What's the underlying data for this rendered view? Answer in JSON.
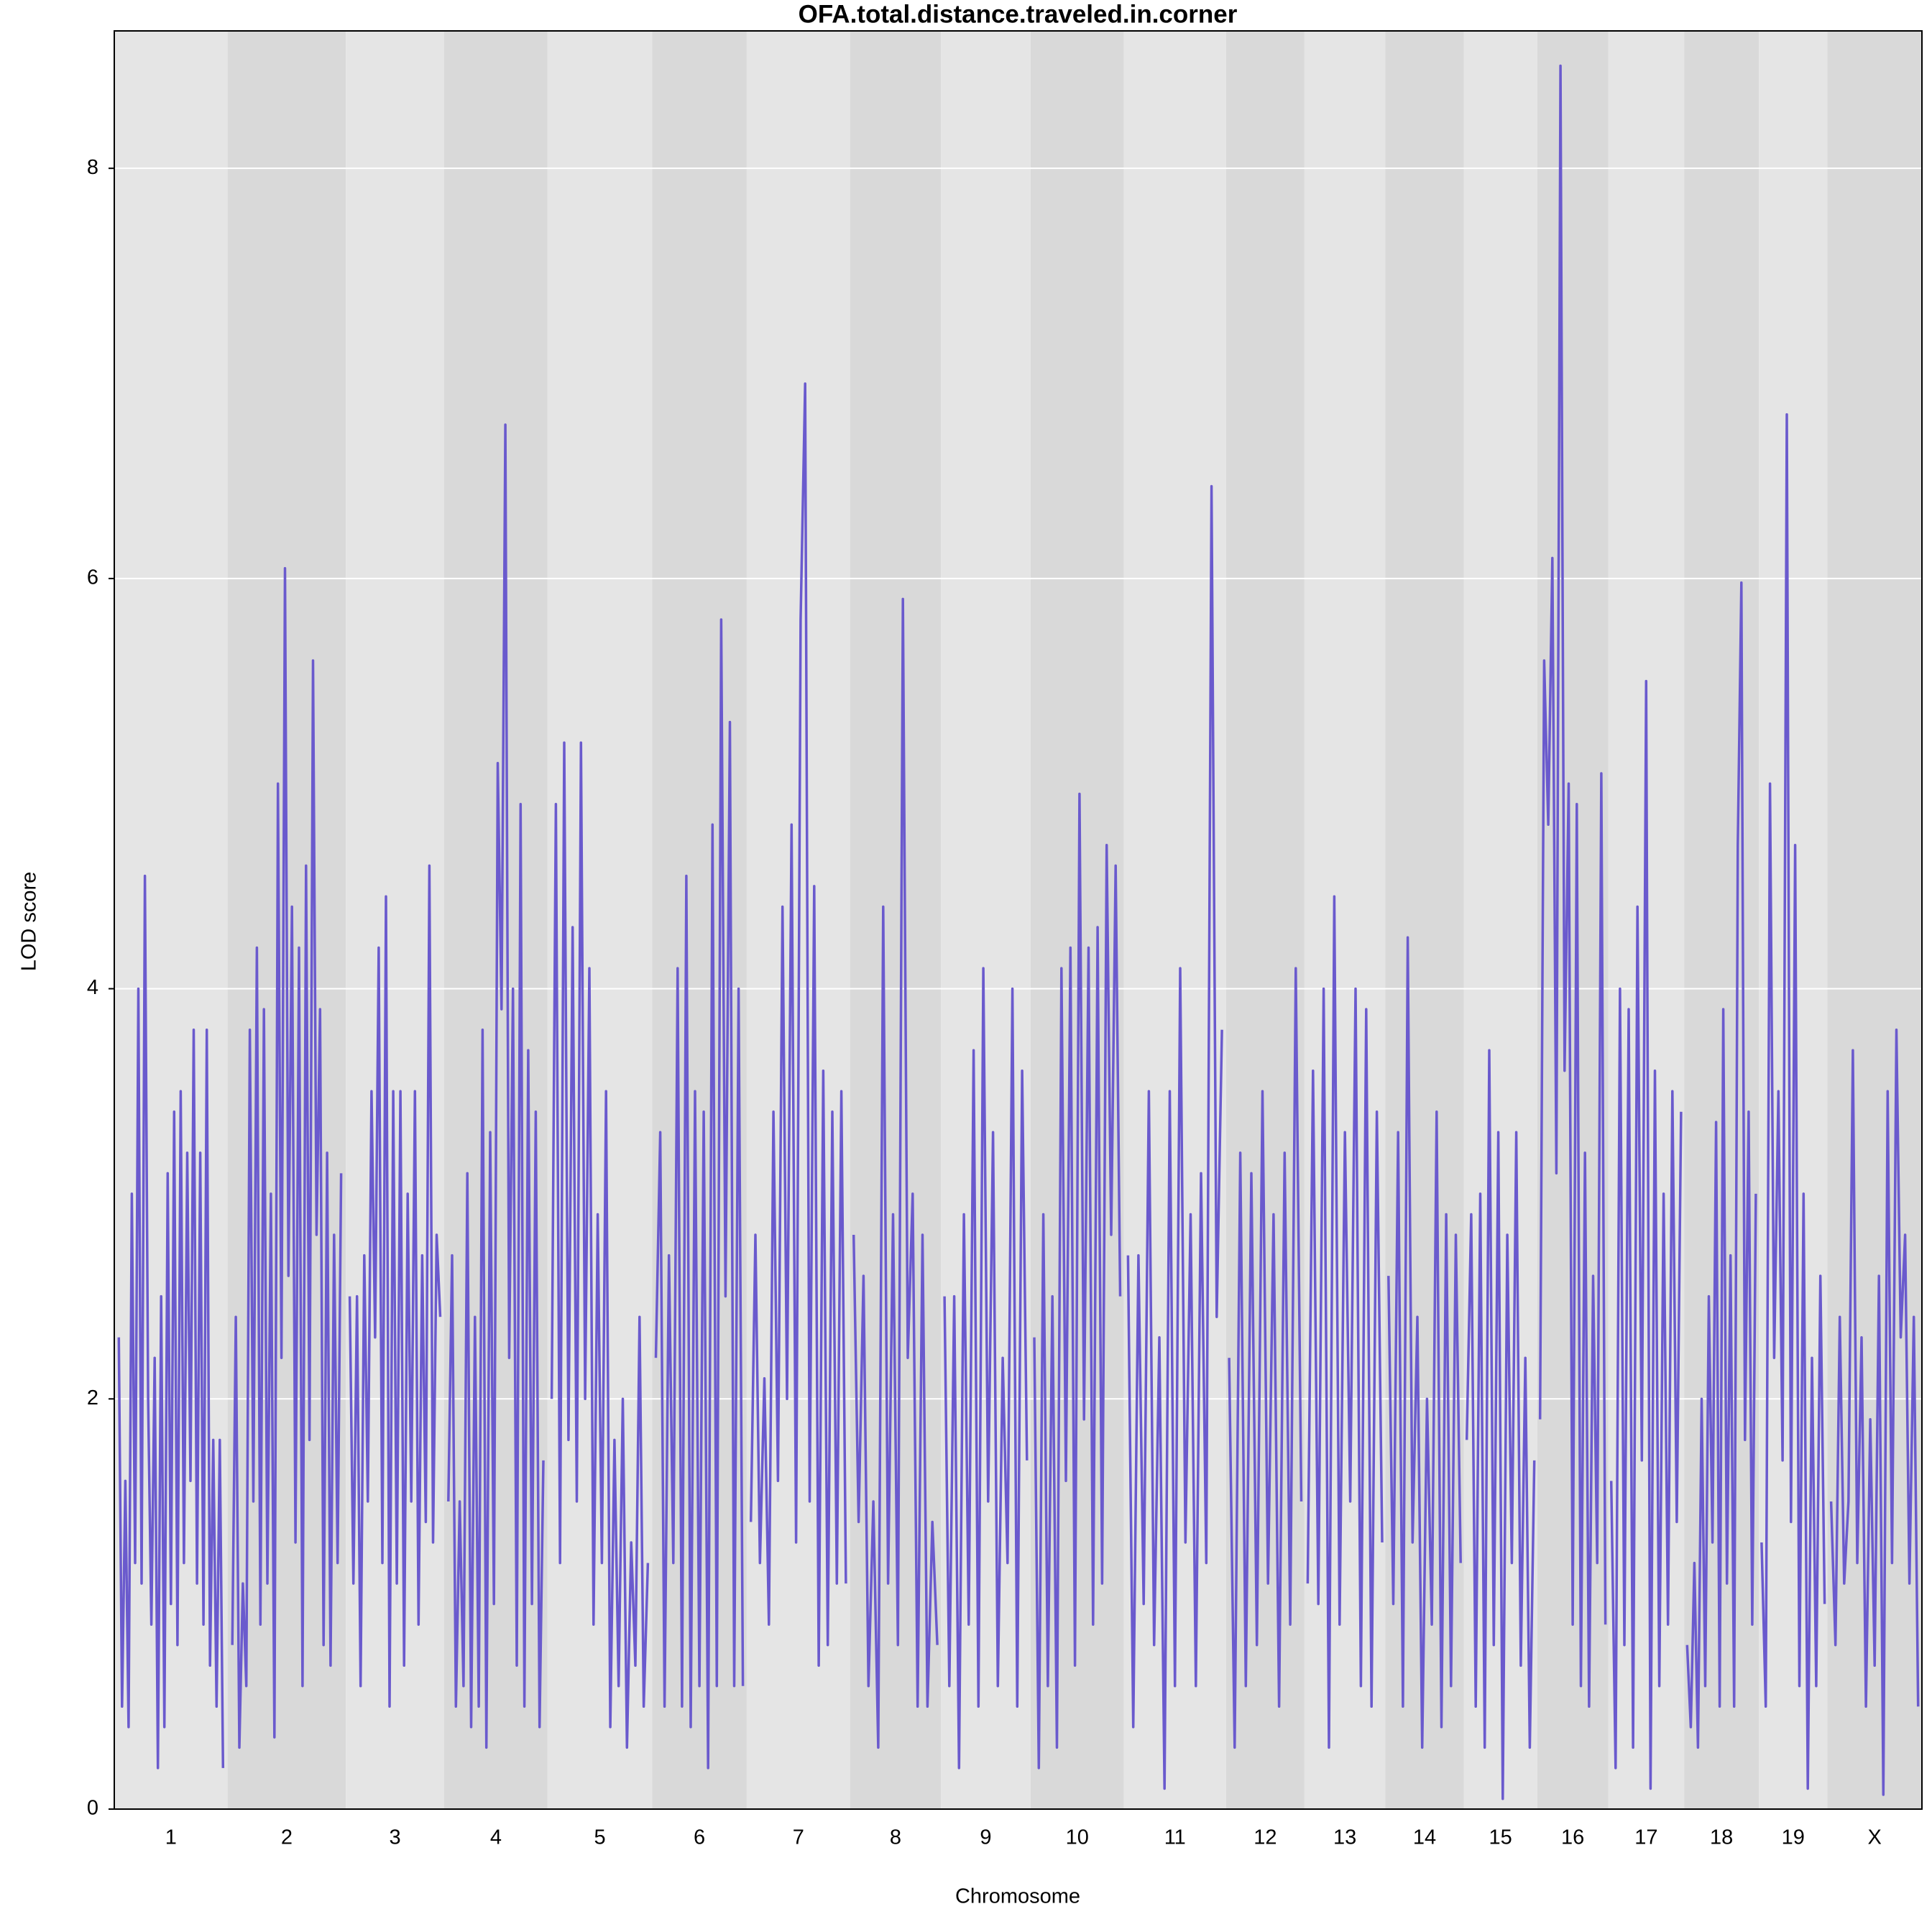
{
  "chart_data": {
    "type": "line",
    "title": "OFA.total.distance.traveled.in.corner",
    "x_label": "Chromosome",
    "y_label": "LOD score",
    "ylim": [
      0,
      8.67
    ],
    "yticks": [
      0,
      2,
      4,
      6,
      8
    ],
    "grid": true,
    "color": "#6a5acd",
    "band_colors": [
      "#e5e5e5",
      "#d9d9d9"
    ],
    "chromosomes": [
      {
        "name": "1",
        "length": 91,
        "values": [
          2.3,
          0.5,
          1.6,
          0.4,
          3.0,
          1.2,
          4.0,
          1.1,
          4.55,
          2.0,
          0.9,
          2.2,
          0.2,
          2.5,
          0.4,
          3.1,
          1.0,
          3.4,
          0.8,
          3.5,
          1.2,
          3.2,
          1.6,
          3.8,
          1.1,
          3.2,
          0.9,
          3.8,
          0.7,
          1.8,
          0.5,
          1.8,
          0.2
        ]
      },
      {
        "name": "2",
        "length": 95,
        "values": [
          0.8,
          2.4,
          0.3,
          1.1,
          0.6,
          3.8,
          1.5,
          4.2,
          0.9,
          3.9,
          1.1,
          3.0,
          0.35,
          5.0,
          2.2,
          6.05,
          2.6,
          4.4,
          1.3,
          4.2,
          0.6,
          4.6,
          1.8,
          5.6,
          2.8,
          3.9,
          0.8,
          3.2,
          0.7,
          2.8,
          1.2,
          3.1
        ]
      },
      {
        "name": "3",
        "length": 79,
        "values": [
          2.5,
          1.1,
          2.5,
          0.6,
          2.7,
          1.5,
          3.5,
          2.3,
          4.2,
          1.2,
          4.45,
          0.5,
          3.5,
          1.1,
          3.5,
          0.7,
          3.0,
          1.5,
          3.5,
          0.9,
          2.7,
          1.4,
          4.6,
          1.3,
          2.8,
          2.4
        ]
      },
      {
        "name": "4",
        "length": 83,
        "values": [
          1.5,
          2.7,
          0.5,
          1.5,
          0.6,
          3.1,
          0.4,
          2.4,
          0.5,
          3.8,
          0.3,
          3.3,
          1.0,
          5.1,
          3.9,
          6.75,
          2.2,
          4.0,
          0.7,
          4.9,
          0.5,
          3.7,
          1.0,
          3.4,
          0.4,
          1.7
        ]
      },
      {
        "name": "5",
        "length": 84,
        "values": [
          2.0,
          4.9,
          1.2,
          5.2,
          1.8,
          4.3,
          1.5,
          5.2,
          2.0,
          4.1,
          0.9,
          2.9,
          1.2,
          3.5,
          0.4,
          1.8,
          0.6,
          2.0,
          0.3,
          1.3,
          0.7,
          2.4,
          0.5,
          1.2
        ]
      },
      {
        "name": "6",
        "length": 76,
        "values": [
          2.2,
          3.3,
          0.5,
          2.7,
          1.2,
          4.1,
          0.5,
          4.55,
          0.4,
          3.5,
          0.6,
          3.4,
          0.2,
          4.8,
          0.6,
          5.8,
          2.5,
          5.3,
          0.6,
          4.0,
          0.6
        ]
      },
      {
        "name": "7",
        "length": 83,
        "values": [
          1.4,
          2.8,
          1.2,
          2.1,
          0.9,
          3.4,
          1.6,
          4.4,
          2.0,
          4.8,
          1.3,
          5.8,
          6.95,
          1.5,
          4.5,
          0.7,
          3.6,
          0.8,
          3.4,
          1.1,
          3.5,
          1.1
        ]
      },
      {
        "name": "8",
        "length": 73,
        "values": [
          2.8,
          1.4,
          2.6,
          0.6,
          1.5,
          0.3,
          4.4,
          1.1,
          2.9,
          0.8,
          5.9,
          2.2,
          3.0,
          0.5,
          2.8,
          0.5,
          1.4,
          0.8
        ]
      },
      {
        "name": "9",
        "length": 72,
        "values": [
          2.5,
          0.6,
          2.5,
          0.2,
          2.9,
          0.9,
          3.7,
          0.5,
          4.1,
          1.5,
          3.3,
          0.6,
          2.2,
          1.2,
          4.0,
          0.5,
          3.6,
          1.7
        ]
      },
      {
        "name": "10",
        "length": 75,
        "values": [
          2.3,
          0.2,
          2.9,
          0.6,
          2.5,
          0.3,
          4.1,
          1.6,
          4.2,
          0.7,
          4.95,
          1.9,
          4.2,
          0.9,
          4.3,
          1.1,
          4.7,
          2.8,
          4.6,
          2.5
        ]
      },
      {
        "name": "11",
        "length": 82,
        "values": [
          2.7,
          0.4,
          2.7,
          1.0,
          3.5,
          0.8,
          2.3,
          0.1,
          3.5,
          0.6,
          4.1,
          1.3,
          2.9,
          0.6,
          3.1,
          1.2,
          6.45,
          2.4,
          3.8
        ]
      },
      {
        "name": "12",
        "length": 63,
        "values": [
          2.2,
          0.3,
          3.2,
          0.6,
          3.1,
          0.8,
          3.5,
          1.1,
          2.9,
          0.5,
          3.2,
          0.9,
          4.1,
          1.5
        ]
      },
      {
        "name": "13",
        "length": 65,
        "values": [
          1.1,
          3.6,
          1.0,
          4.0,
          0.3,
          4.45,
          0.9,
          3.3,
          1.5,
          4.0,
          0.6,
          3.9,
          0.5,
          3.4,
          1.3
        ]
      },
      {
        "name": "14",
        "length": 63,
        "values": [
          2.6,
          1.0,
          3.3,
          0.5,
          4.25,
          1.3,
          2.4,
          0.3,
          2.0,
          0.9,
          3.4,
          0.4,
          2.9,
          0.6,
          2.8,
          1.2
        ]
      },
      {
        "name": "15",
        "length": 59,
        "values": [
          1.8,
          2.9,
          0.5,
          3.0,
          0.3,
          3.7,
          0.8,
          3.3,
          0.05,
          2.8,
          1.2,
          3.3,
          0.7,
          2.2,
          0.3,
          1.7
        ]
      },
      {
        "name": "16",
        "length": 57,
        "values": [
          1.9,
          5.6,
          4.8,
          6.1,
          3.1,
          8.5,
          3.6,
          5.0,
          0.9,
          4.9,
          0.6,
          3.2,
          0.5,
          2.6,
          1.2,
          5.05,
          0.9
        ]
      },
      {
        "name": "17",
        "length": 61,
        "values": [
          1.6,
          0.2,
          4.0,
          0.8,
          3.9,
          0.3,
          4.4,
          1.7,
          5.5,
          0.1,
          3.6,
          0.6,
          3.0,
          0.9,
          3.5,
          1.4,
          3.4
        ]
      },
      {
        "name": "18",
        "length": 60,
        "values": [
          0.8,
          0.4,
          1.2,
          0.3,
          2.0,
          0.6,
          2.5,
          1.3,
          3.35,
          0.5,
          3.9,
          1.1,
          2.7,
          0.5,
          4.7,
          5.98,
          1.8,
          3.4,
          0.9,
          3.0
        ]
      },
      {
        "name": "19",
        "length": 55,
        "values": [
          1.3,
          0.5,
          5.0,
          2.2,
          3.5,
          1.7,
          6.8,
          1.4,
          4.7,
          0.6,
          3.0,
          0.1,
          2.2,
          0.6,
          2.6,
          1.0
        ]
      },
      {
        "name": "X",
        "length": 76,
        "values": [
          1.5,
          0.8,
          2.4,
          1.1,
          1.5,
          3.7,
          1.2,
          2.3,
          0.5,
          1.9,
          0.7,
          2.6,
          0.07,
          3.5,
          1.2,
          3.8,
          2.3,
          2.8,
          1.1,
          2.4,
          0.5
        ]
      }
    ]
  }
}
